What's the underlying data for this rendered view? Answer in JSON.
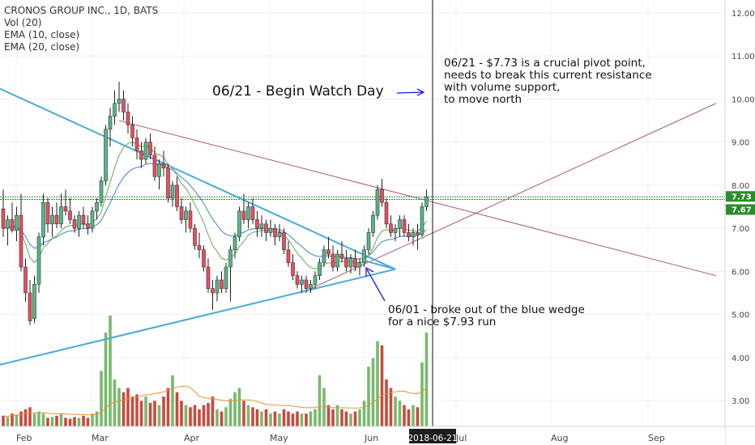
{
  "legend": {
    "title": "CRONOS GROUP INC., 1D, BATS",
    "vol": "Vol (20)",
    "ema10": "EMA (10, close)",
    "ema20": "EMA (20, close)"
  },
  "annotations": {
    "watch_day": "06/21 - Begin Watch Day",
    "pivot": [
      "06/21 - $7.73 is a crucial pivot point,",
      "needs to break this current resistance",
      "with volume support,",
      "to move north"
    ],
    "wedge": [
      "06/01 - broke out of the blue wedge",
      "for a nice $7.93 run"
    ]
  },
  "colors": {
    "up": "#53b987",
    "down": "#eb4d5c",
    "wick": "#222222",
    "vol_up": "#78b96e",
    "vol_down": "#c84a3c",
    "wedge": "#4aa9d8",
    "trend": "#a85a6a",
    "support_green": "#2e8b2e",
    "ema10": "#6aa84f",
    "ema20": "#3d85c6",
    "vol_ma": "#e69138",
    "arrow": "#1a1aff",
    "crosshair": "#111111"
  },
  "chart_data": {
    "type": "candlestick",
    "title": "CRONOS GROUP INC., 1D, BATS",
    "y_axis": {
      "range": [
        2.4,
        12.3
      ],
      "ticks": [
        "3.00",
        "4.00",
        "5.00",
        "6.00",
        "7.00",
        "8.00",
        "9.00",
        "10.00",
        "11.00",
        "12.00"
      ]
    },
    "x_axis": {
      "ticks": [
        "Feb",
        "Mar",
        "Apr",
        "May",
        "Jun",
        "Jul",
        "Aug",
        "Sep"
      ],
      "crosshair_label": "2018-06-21"
    },
    "price_labels": [
      {
        "value": 7.73,
        "label": "7.73"
      },
      {
        "value": 7.67,
        "label": "7.67"
      }
    ],
    "candles": [
      [
        7.45,
        7.9,
        6.8,
        7.0
      ],
      [
        7.0,
        7.3,
        6.6,
        7.2
      ],
      [
        7.2,
        7.6,
        6.9,
        6.95
      ],
      [
        6.95,
        7.5,
        6.7,
        7.3
      ],
      [
        7.3,
        7.8,
        6.0,
        6.1
      ],
      [
        6.1,
        6.3,
        5.3,
        5.5
      ],
      [
        5.5,
        5.8,
        4.75,
        4.85
      ],
      [
        4.9,
        5.9,
        4.8,
        5.7
      ],
      [
        5.7,
        6.9,
        5.5,
        6.8
      ],
      [
        6.8,
        7.8,
        6.6,
        7.6
      ],
      [
        7.6,
        7.7,
        6.9,
        7.1
      ],
      [
        7.1,
        7.5,
        6.8,
        7.3
      ],
      [
        7.3,
        7.6,
        7.0,
        7.1
      ],
      [
        7.1,
        7.8,
        7.0,
        7.5
      ],
      [
        7.5,
        7.9,
        7.3,
        7.4
      ],
      [
        7.4,
        7.7,
        7.1,
        7.2
      ],
      [
        7.2,
        7.3,
        6.9,
        7.0
      ],
      [
        7.0,
        7.4,
        6.8,
        7.3
      ],
      [
        7.3,
        7.5,
        7.0,
        7.1
      ],
      [
        7.1,
        7.3,
        6.85,
        7.0
      ],
      [
        7.0,
        7.5,
        6.9,
        7.4
      ],
      [
        7.4,
        7.7,
        7.2,
        7.6
      ],
      [
        7.6,
        8.2,
        7.5,
        8.1
      ],
      [
        8.1,
        9.4,
        8.0,
        9.3
      ],
      [
        9.3,
        9.8,
        8.9,
        9.6
      ],
      [
        9.6,
        10.2,
        9.4,
        9.9
      ],
      [
        9.9,
        10.4,
        9.7,
        10.0
      ],
      [
        10.0,
        10.2,
        9.5,
        9.7
      ],
      [
        9.7,
        9.9,
        9.2,
        9.4
      ],
      [
        9.4,
        9.6,
        8.9,
        9.1
      ],
      [
        9.1,
        9.3,
        8.6,
        8.8
      ],
      [
        8.8,
        9.0,
        8.4,
        8.6
      ],
      [
        8.6,
        9.1,
        8.5,
        9.0
      ],
      [
        9.0,
        9.2,
        8.6,
        8.7
      ],
      [
        8.7,
        8.9,
        8.1,
        8.2
      ],
      [
        8.2,
        8.6,
        7.9,
        8.5
      ],
      [
        8.5,
        8.8,
        8.2,
        8.4
      ],
      [
        8.4,
        8.5,
        7.6,
        7.7
      ],
      [
        7.7,
        8.1,
        7.5,
        8.0
      ],
      [
        8.0,
        8.2,
        7.4,
        7.5
      ],
      [
        7.5,
        7.7,
        7.1,
        7.2
      ],
      [
        7.2,
        7.5,
        6.9,
        7.4
      ],
      [
        7.4,
        7.6,
        6.9,
        7.0
      ],
      [
        7.0,
        7.1,
        6.5,
        6.6
      ],
      [
        6.6,
        6.9,
        6.3,
        6.5
      ],
      [
        6.5,
        6.6,
        6.0,
        6.1
      ],
      [
        6.1,
        6.3,
        5.5,
        5.6
      ],
      [
        5.6,
        5.8,
        5.1,
        5.5
      ],
      [
        5.5,
        5.9,
        5.3,
        5.8
      ],
      [
        5.8,
        6.0,
        5.5,
        5.6
      ],
      [
        5.6,
        6.2,
        5.5,
        6.1
      ],
      [
        6.1,
        6.6,
        5.3,
        6.5
      ],
      [
        6.5,
        6.9,
        6.3,
        6.8
      ],
      [
        6.8,
        7.5,
        6.7,
        7.4
      ],
      [
        7.4,
        7.8,
        7.1,
        7.2
      ],
      [
        7.2,
        7.6,
        7.0,
        7.5
      ],
      [
        7.5,
        7.7,
        7.1,
        7.2
      ],
      [
        7.2,
        7.4,
        6.8,
        7.0
      ],
      [
        7.0,
        7.3,
        6.8,
        7.1
      ],
      [
        7.1,
        7.2,
        6.7,
        6.9
      ],
      [
        6.9,
        7.2,
        6.8,
        7.0
      ],
      [
        7.0,
        7.1,
        6.6,
        6.8
      ],
      [
        6.8,
        7.1,
        6.7,
        6.9
      ],
      [
        6.9,
        7.0,
        6.4,
        6.5
      ],
      [
        6.5,
        6.7,
        6.1,
        6.2
      ],
      [
        6.2,
        6.4,
        5.8,
        5.9
      ],
      [
        5.9,
        6.0,
        5.6,
        5.7
      ],
      [
        5.7,
        5.9,
        5.5,
        5.8
      ],
      [
        5.8,
        5.9,
        5.5,
        5.6
      ],
      [
        5.6,
        5.8,
        5.5,
        5.7
      ],
      [
        5.7,
        6.0,
        5.6,
        5.9
      ],
      [
        5.9,
        6.3,
        5.8,
        6.2
      ],
      [
        6.2,
        6.6,
        6.1,
        6.5
      ],
      [
        6.5,
        6.8,
        6.3,
        6.4
      ],
      [
        6.4,
        6.6,
        6.0,
        6.1
      ],
      [
        6.1,
        6.5,
        6.0,
        6.4
      ],
      [
        6.4,
        6.7,
        6.2,
        6.3
      ],
      [
        6.3,
        6.5,
        6.0,
        6.1
      ],
      [
        6.1,
        6.4,
        5.95,
        6.3
      ],
      [
        6.3,
        6.5,
        6.0,
        6.1
      ],
      [
        6.1,
        6.3,
        5.9,
        6.2
      ],
      [
        6.2,
        6.6,
        6.1,
        6.5
      ],
      [
        6.5,
        7.0,
        6.4,
        6.9
      ],
      [
        6.9,
        7.4,
        6.8,
        7.3
      ],
      [
        7.3,
        8.0,
        7.2,
        7.9
      ],
      [
        7.9,
        8.15,
        7.5,
        7.6
      ],
      [
        7.6,
        7.7,
        7.0,
        7.1
      ],
      [
        7.1,
        7.3,
        6.8,
        6.9
      ],
      [
        6.9,
        7.1,
        6.7,
        7.0
      ],
      [
        7.0,
        7.3,
        6.8,
        7.2
      ],
      [
        7.2,
        7.3,
        6.8,
        6.9
      ],
      [
        6.9,
        7.1,
        6.7,
        6.8
      ],
      [
        6.8,
        7.0,
        6.6,
        6.9
      ],
      [
        6.9,
        7.1,
        6.5,
        6.85
      ],
      [
        6.85,
        7.6,
        6.8,
        7.5
      ],
      [
        7.5,
        7.9,
        7.4,
        7.73
      ]
    ],
    "volume": [
      0.25,
      0.22,
      0.3,
      0.28,
      0.35,
      0.4,
      0.45,
      0.3,
      0.35,
      0.3,
      0.2,
      0.22,
      0.25,
      0.3,
      0.2,
      0.18,
      0.22,
      0.2,
      0.25,
      0.2,
      0.3,
      0.35,
      1.3,
      2.2,
      2.6,
      1.1,
      0.9,
      0.8,
      0.9,
      0.7,
      0.75,
      0.6,
      0.7,
      0.55,
      0.6,
      0.5,
      0.7,
      0.9,
      1.2,
      0.8,
      0.6,
      0.5,
      0.45,
      0.5,
      0.4,
      0.5,
      0.55,
      0.7,
      0.4,
      0.35,
      0.45,
      0.65,
      0.8,
      0.9,
      0.6,
      0.5,
      0.45,
      0.4,
      0.35,
      0.4,
      0.3,
      0.35,
      0.3,
      0.4,
      0.35,
      0.3,
      0.35,
      0.3,
      0.3,
      0.35,
      0.4,
      1.2,
      0.9,
      0.5,
      0.4,
      0.5,
      0.4,
      0.35,
      0.3,
      0.35,
      0.4,
      0.6,
      1.4,
      1.6,
      2.0,
      1.9,
      1.1,
      0.9,
      0.7,
      0.6,
      0.5,
      0.4,
      0.5,
      0.45,
      1.5,
      2.2
    ],
    "wedge_upper": [
      [
        -2,
        10.3
      ],
      [
        88,
        6.05
      ]
    ],
    "wedge_lower": [
      [
        -2,
        3.8
      ],
      [
        88,
        6.05
      ]
    ],
    "trend_lines": [
      {
        "from": [
          26,
          9.5
        ],
        "to": [
          160,
          5.9
        ]
      },
      {
        "from": [
          68,
          5.55
        ],
        "to": [
          160,
          9.9
        ]
      }
    ],
    "support_levels": [
      7.73,
      7.67
    ],
    "crosshair_index": 96
  }
}
